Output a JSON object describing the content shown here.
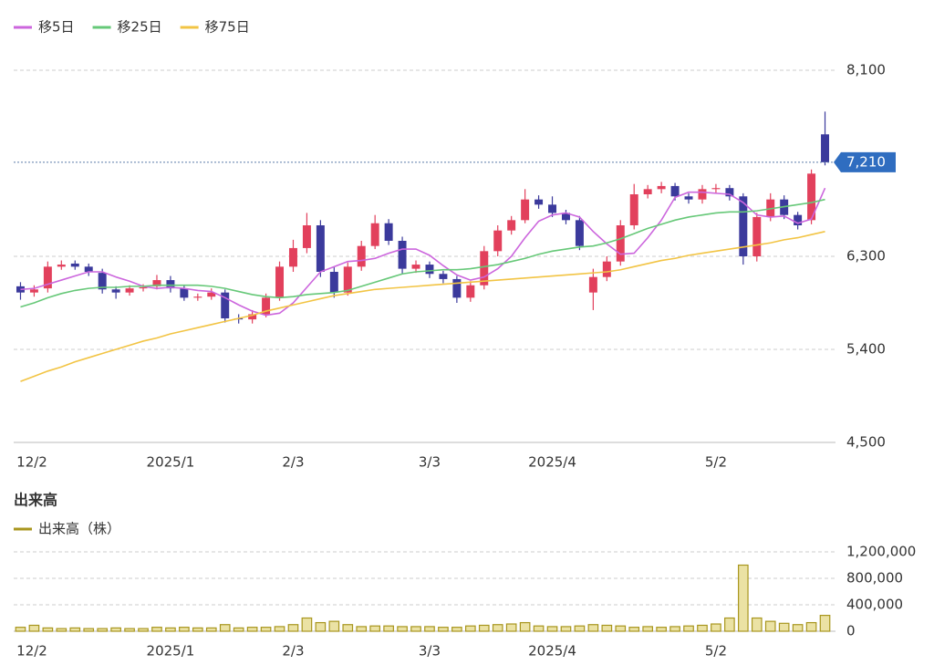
{
  "chart_data": [
    {
      "type": "candlestick",
      "categories": [
        "12/2",
        null,
        null,
        null,
        null,
        null,
        null,
        null,
        null,
        null,
        null,
        "2025/1",
        null,
        null,
        null,
        null,
        null,
        null,
        null,
        null,
        "2/3",
        null,
        null,
        null,
        null,
        null,
        null,
        null,
        null,
        null,
        "3/3",
        null,
        null,
        null,
        null,
        null,
        null,
        null,
        null,
        "2025/4",
        null,
        null,
        null,
        null,
        null,
        null,
        null,
        null,
        null,
        null,
        null,
        "5/2",
        null,
        null,
        null,
        null,
        null,
        null,
        null,
        null
      ],
      "open": [
        6010,
        5950,
        5990,
        6200,
        6230,
        6200,
        6140,
        5980,
        5950,
        5990,
        6010,
        6070,
        5990,
        5900,
        5910,
        5950,
        5700,
        5690,
        5740,
        5900,
        6200,
        6380,
        6600,
        6150,
        5950,
        6200,
        6400,
        6620,
        6450,
        6180,
        6220,
        6130,
        6080,
        5900,
        6020,
        6350,
        6550,
        6650,
        6850,
        6800,
        6720,
        6650,
        5950,
        6100,
        6250,
        6600,
        6900,
        6950,
        6980,
        6880,
        6850,
        6950,
        6960,
        6880,
        6300,
        6680,
        6850,
        6700,
        6650,
        7480
      ],
      "high": [
        6050,
        6020,
        6250,
        6260,
        6260,
        6230,
        6180,
        6010,
        6020,
        6030,
        6120,
        6110,
        6020,
        5940,
        5990,
        5980,
        5740,
        5780,
        5940,
        6250,
        6460,
        6720,
        6650,
        6200,
        6240,
        6450,
        6700,
        6660,
        6490,
        6260,
        6250,
        6160,
        6110,
        6060,
        6400,
        6600,
        6690,
        6950,
        6890,
        6880,
        6750,
        6690,
        6180,
        6300,
        6650,
        7000,
        6990,
        7020,
        7010,
        6910,
        6990,
        7000,
        6990,
        6910,
        6720,
        6910,
        6890,
        6730,
        7140,
        7700
      ],
      "low": [
        5880,
        5910,
        5950,
        6170,
        6170,
        6110,
        5940,
        5890,
        5920,
        5960,
        5980,
        5950,
        5870,
        5870,
        5880,
        5660,
        5650,
        5650,
        5710,
        5870,
        6150,
        6330,
        6100,
        5900,
        5920,
        6160,
        6370,
        6410,
        6130,
        6140,
        6090,
        6040,
        5850,
        5860,
        5980,
        6300,
        6510,
        6620,
        6760,
        6680,
        6610,
        6360,
        5780,
        6060,
        6210,
        6560,
        6860,
        6910,
        6840,
        6810,
        6810,
        6910,
        6840,
        6220,
        6250,
        6640,
        6660,
        6560,
        6610,
        7180
      ],
      "close": [
        5950,
        5980,
        6200,
        6220,
        6200,
        6150,
        5980,
        5950,
        5990,
        6000,
        6070,
        5990,
        5900,
        5910,
        5950,
        5700,
        5690,
        5740,
        5900,
        6200,
        6380,
        6600,
        6150,
        5950,
        6200,
        6400,
        6620,
        6450,
        6180,
        6220,
        6130,
        6080,
        5900,
        6020,
        6350,
        6550,
        6650,
        6850,
        6800,
        6720,
        6650,
        6400,
        6100,
        6250,
        6600,
        6900,
        6950,
        6980,
        6880,
        6850,
        6950,
        6960,
        6880,
        6300,
        6680,
        6850,
        6700,
        6600,
        7100,
        7210
      ],
      "up_color": "#e2405c",
      "down_color": "#3b3a9c",
      "series": [
        {
          "name": "移5日",
          "color": "#cc66dd",
          "values": [
            5980,
            5990,
            6030,
            6070,
            6110,
            6150,
            6150,
            6100,
            6060,
            6010,
            5990,
            6000,
            5990,
            5970,
            5960,
            5900,
            5830,
            5770,
            5730,
            5750,
            5850,
            6000,
            6150,
            6200,
            6250,
            6260,
            6280,
            6330,
            6370,
            6370,
            6310,
            6210,
            6120,
            6070,
            6100,
            6180,
            6300,
            6480,
            6640,
            6700,
            6720,
            6680,
            6540,
            6420,
            6320,
            6330,
            6480,
            6650,
            6870,
            6920,
            6920,
            6910,
            6900,
            6820,
            6700,
            6680,
            6690,
            6620,
            6660,
            6960
          ]
        },
        {
          "name": "移25日",
          "color": "#66c878",
          "values": [
            5810,
            5850,
            5900,
            5940,
            5970,
            5990,
            6000,
            6000,
            6010,
            6010,
            6020,
            6020,
            6020,
            6020,
            6010,
            5990,
            5960,
            5930,
            5910,
            5900,
            5910,
            5930,
            5940,
            5950,
            5970,
            6010,
            6050,
            6090,
            6130,
            6150,
            6160,
            6170,
            6170,
            6180,
            6200,
            6220,
            6250,
            6280,
            6320,
            6350,
            6370,
            6390,
            6400,
            6430,
            6470,
            6520,
            6570,
            6610,
            6650,
            6680,
            6700,
            6720,
            6730,
            6730,
            6740,
            6760,
            6780,
            6800,
            6820,
            6850
          ]
        },
        {
          "name": "移75日",
          "color": "#f2c444",
          "values": [
            5090,
            5140,
            5190,
            5230,
            5280,
            5320,
            5360,
            5400,
            5440,
            5480,
            5510,
            5550,
            5580,
            5610,
            5640,
            5670,
            5700,
            5730,
            5770,
            5800,
            5830,
            5860,
            5890,
            5920,
            5940,
            5960,
            5980,
            5990,
            6000,
            6010,
            6020,
            6030,
            6040,
            6050,
            6060,
            6070,
            6080,
            6090,
            6100,
            6110,
            6120,
            6130,
            6140,
            6150,
            6170,
            6200,
            6230,
            6260,
            6280,
            6310,
            6330,
            6350,
            6370,
            6390,
            6410,
            6430,
            6460,
            6480,
            6510,
            6540
          ]
        }
      ],
      "last": {
        "value": 7210,
        "label": "7,210"
      },
      "ylim": [
        4500,
        8100
      ],
      "yticks": [
        {
          "value": 4500,
          "label": "4,500"
        },
        {
          "value": 5400,
          "label": "5,400"
        },
        {
          "value": 6300,
          "label": "6,300"
        },
        {
          "value": 8100,
          "label": "8,100"
        }
      ],
      "grid": true
    },
    {
      "type": "bar",
      "title": "出来高",
      "categories": [
        "12/2",
        null,
        null,
        null,
        null,
        null,
        null,
        null,
        null,
        null,
        null,
        "2025/1",
        null,
        null,
        null,
        null,
        null,
        null,
        null,
        null,
        "2/3",
        null,
        null,
        null,
        null,
        null,
        null,
        null,
        null,
        null,
        "3/3",
        null,
        null,
        null,
        null,
        null,
        null,
        null,
        null,
        "2025/4",
        null,
        null,
        null,
        null,
        null,
        null,
        null,
        null,
        null,
        null,
        null,
        "5/2",
        null,
        null,
        null,
        null,
        null,
        null,
        null,
        null
      ],
      "series": [
        {
          "name": "出来高（株）",
          "color": "#a8961e",
          "values": [
            60000,
            90000,
            50000,
            40000,
            50000,
            40000,
            40000,
            50000,
            40000,
            40000,
            60000,
            50000,
            60000,
            50000,
            50000,
            100000,
            50000,
            60000,
            60000,
            70000,
            100000,
            200000,
            130000,
            150000,
            100000,
            70000,
            80000,
            80000,
            70000,
            70000,
            70000,
            60000,
            60000,
            80000,
            90000,
            100000,
            110000,
            130000,
            80000,
            70000,
            70000,
            80000,
            100000,
            90000,
            80000,
            60000,
            70000,
            60000,
            70000,
            80000,
            90000,
            110000,
            200000,
            1000000,
            200000,
            150000,
            120000,
            100000,
            130000,
            240000
          ]
        }
      ],
      "ylim": [
        0,
        1200000
      ],
      "yticks": [
        0,
        {
          "value": 400000,
          "label": "400,000"
        },
        {
          "value": 800000,
          "label": "800,000"
        },
        {
          "value": 1200000,
          "label": "1,200,000"
        }
      ],
      "grid": true
    }
  ]
}
